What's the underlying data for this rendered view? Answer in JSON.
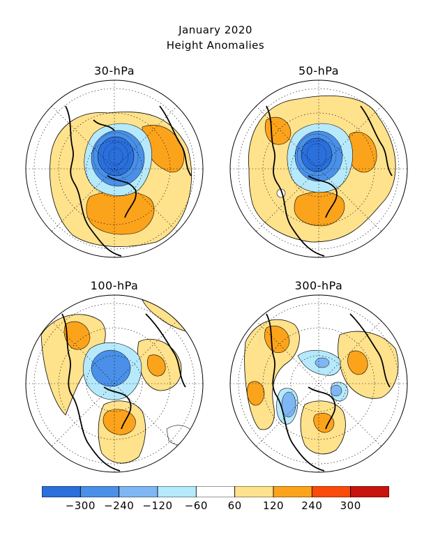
{
  "title": {
    "line1": "January 2020",
    "line2": "Height Anomalies"
  },
  "panels": [
    {
      "label": "30-hPa"
    },
    {
      "label": "50-hPa"
    },
    {
      "label": "100-hPa"
    },
    {
      "label": "300-hPa"
    }
  ],
  "colorbar": {
    "colors": [
      "#2a6fdc",
      "#4a90e8",
      "#7fb6f4",
      "#b5e9fb",
      "#ffffff",
      "#ffe28c",
      "#fca31c",
      "#fb4b0a",
      "#c8130e"
    ],
    "labels": [
      "-300",
      "-240",
      "-120",
      "-60",
      "60",
      "120",
      "240",
      "300"
    ]
  },
  "legend_colors": {
    "strong_negative": "#2a6fdc",
    "moderate_negative": "#4a90e8",
    "weak_negative": "#b5e9fb",
    "weak_positive": "#ffe28c",
    "moderate_positive": "#fca31c"
  }
}
